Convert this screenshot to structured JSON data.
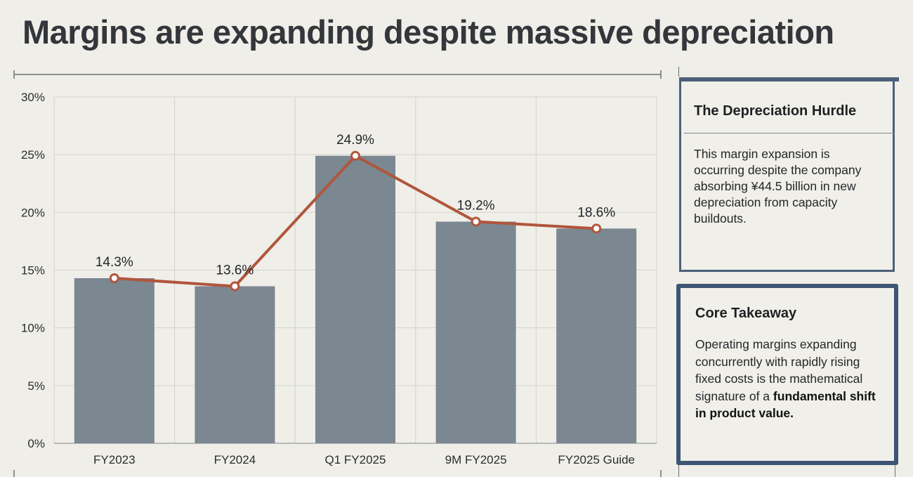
{
  "title": "Margins are expanding despite massive depreciation",
  "chart_data": {
    "type": "bar",
    "categories": [
      "FY2023",
      "FY2024",
      "Q1 FY2025",
      "9M FY2025",
      "FY2025 Guide"
    ],
    "values": [
      14.3,
      13.6,
      24.9,
      19.2,
      18.6
    ],
    "data_labels": [
      "14.3%",
      "13.6%",
      "24.9%",
      "19.2%",
      "18.6%"
    ],
    "overlay_line": true,
    "yticks": [
      "0%",
      "5%",
      "10%",
      "15%",
      "20%",
      "25%",
      "30%"
    ],
    "ylim": [
      0,
      30
    ],
    "grid": true,
    "colors": {
      "bar": "#7b8791",
      "line": "#b0563c"
    }
  },
  "sidebar": {
    "card1": {
      "heading": "The Depreciation Hurdle",
      "body": "This margin expansion is occurring despite the company absorbing ¥44.5 billion in new depreciation from capacity buildouts."
    },
    "card2": {
      "heading": "Core Takeaway",
      "body_plain": "Operating margins expanding concurrently with rapidly rising fixed costs is the mathematical signature of a",
      "body_bold": "fundamental shift in product value."
    }
  }
}
